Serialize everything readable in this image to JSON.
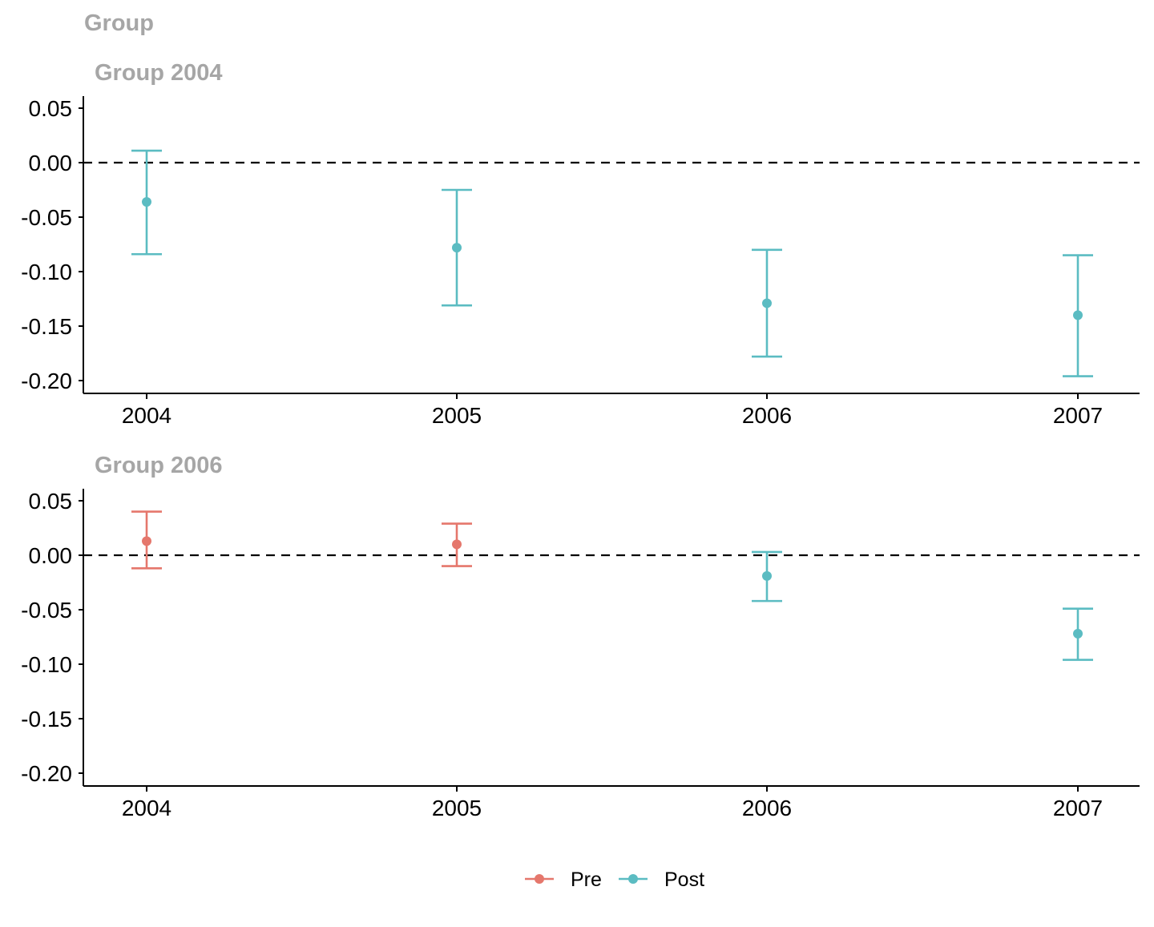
{
  "title": "Group",
  "colors": {
    "pre": "#E5776C",
    "post": "#5BBCC2",
    "title": "#A6A6A6",
    "axis": "#000000",
    "zero_line": "#000000"
  },
  "legend": {
    "position": "bottom",
    "items": [
      {
        "key": "pre",
        "label": "Pre"
      },
      {
        "key": "post",
        "label": "Post"
      }
    ]
  },
  "chart_data": [
    {
      "type": "errorbar",
      "title": "Group 2004",
      "x_ticks": [
        "2004",
        "2005",
        "2006",
        "2007"
      ],
      "y_ticks": [
        "0.05",
        "0.00",
        "-0.05",
        "-0.10",
        "-0.15",
        "-0.20"
      ],
      "ylim": [
        -0.21,
        0.06
      ],
      "zero_line": true,
      "points": [
        {
          "x": "2004",
          "y": -0.036,
          "lower": -0.084,
          "upper": 0.011,
          "period": "post"
        },
        {
          "x": "2005",
          "y": -0.078,
          "lower": -0.131,
          "upper": -0.025,
          "period": "post"
        },
        {
          "x": "2006",
          "y": -0.129,
          "lower": -0.178,
          "upper": -0.08,
          "period": "post"
        },
        {
          "x": "2007",
          "y": -0.14,
          "lower": -0.196,
          "upper": -0.085,
          "period": "post"
        }
      ]
    },
    {
      "type": "errorbar",
      "title": "Group 2006",
      "x_ticks": [
        "2004",
        "2005",
        "2006",
        "2007"
      ],
      "y_ticks": [
        "0.05",
        "0.00",
        "-0.05",
        "-0.10",
        "-0.15",
        "-0.20"
      ],
      "ylim": [
        -0.21,
        0.06
      ],
      "zero_line": true,
      "points": [
        {
          "x": "2004",
          "y": 0.013,
          "lower": -0.012,
          "upper": 0.04,
          "period": "pre"
        },
        {
          "x": "2005",
          "y": 0.01,
          "lower": -0.01,
          "upper": 0.029,
          "period": "pre"
        },
        {
          "x": "2006",
          "y": -0.019,
          "lower": -0.042,
          "upper": 0.003,
          "period": "post"
        },
        {
          "x": "2007",
          "y": -0.072,
          "lower": -0.096,
          "upper": -0.049,
          "period": "post"
        }
      ]
    }
  ]
}
